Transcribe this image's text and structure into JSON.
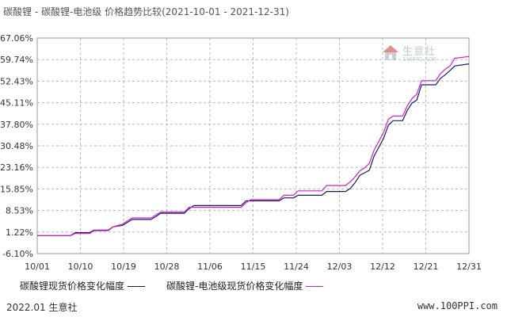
{
  "title": "碳酸锂 - 碳酸锂-电池级 价格趋势比较(2021-10-01 - 2021-12-31)",
  "logo": {
    "name": "生意社",
    "sub": "100PPI.COM"
  },
  "footer": {
    "left": "2022.01 生意社",
    "right": "www.100PPI.com"
  },
  "colors": {
    "grid": "#b8b8b8",
    "series1": "#1a1a5e",
    "series2": "#d21fd2"
  },
  "chart_data": {
    "type": "line",
    "title": "碳酸锂 - 碳酸锂-电池级 价格趋势比较(2021-10-01 - 2021-12-31)",
    "xlabel": "",
    "ylabel": "",
    "x_start": "2021-10-01",
    "x_end": "2021-12-31",
    "xticks": [
      "10/01",
      "10/10",
      "10/19",
      "10/28",
      "11/06",
      "11/15",
      "11/24",
      "12/03",
      "12/12",
      "12/21",
      "12/31"
    ],
    "yticks": [
      "67.06%",
      "59.74%",
      "52.43%",
      "45.11%",
      "37.80%",
      "30.48%",
      "23.16%",
      "15.85%",
      "8.53%",
      "1.22%",
      "-6.10%"
    ],
    "ylim": [
      -6.1,
      67.06
    ],
    "grid": true,
    "legend_position": "bottom",
    "series": [
      {
        "name": "碳酸锂现货价格变化幅度",
        "color": "#1a1a5e",
        "points": [
          [
            "2021-10-01",
            0.0
          ],
          [
            "2021-10-08",
            0.0
          ],
          [
            "2021-10-09",
            1.0
          ],
          [
            "2021-10-12",
            1.0
          ],
          [
            "2021-10-13",
            1.9
          ],
          [
            "2021-10-16",
            1.9
          ],
          [
            "2021-10-17",
            3.0
          ],
          [
            "2021-10-19",
            3.5
          ],
          [
            "2021-10-20",
            4.5
          ],
          [
            "2021-10-21",
            5.5
          ],
          [
            "2021-10-25",
            5.5
          ],
          [
            "2021-10-26",
            6.5
          ],
          [
            "2021-10-27",
            7.6
          ],
          [
            "2021-11-01",
            7.6
          ],
          [
            "2021-11-02",
            9.1
          ],
          [
            "2021-11-03",
            10.2
          ],
          [
            "2021-11-13",
            10.2
          ],
          [
            "2021-11-14",
            11.8
          ],
          [
            "2021-11-21",
            11.8
          ],
          [
            "2021-11-22",
            12.8
          ],
          [
            "2021-11-24",
            12.8
          ],
          [
            "2021-11-25",
            13.7
          ],
          [
            "2021-11-30",
            13.7
          ],
          [
            "2021-12-01",
            15.0
          ],
          [
            "2021-12-05",
            15.0
          ],
          [
            "2021-12-06",
            16.0
          ],
          [
            "2021-12-07",
            18.0
          ],
          [
            "2021-12-08",
            20.5
          ],
          [
            "2021-12-09",
            21.3
          ],
          [
            "2021-12-10",
            22.2
          ],
          [
            "2021-12-11",
            27.0
          ],
          [
            "2021-12-12",
            30.0
          ],
          [
            "2021-12-13",
            33.0
          ],
          [
            "2021-12-14",
            37.5
          ],
          [
            "2021-12-15",
            39.0
          ],
          [
            "2021-12-17",
            39.0
          ],
          [
            "2021-12-18",
            42.5
          ],
          [
            "2021-12-19",
            45.0
          ],
          [
            "2021-12-20",
            46.0
          ],
          [
            "2021-12-21",
            51.2
          ],
          [
            "2021-12-24",
            51.2
          ],
          [
            "2021-12-25",
            53.4
          ],
          [
            "2021-12-26",
            54.6
          ],
          [
            "2021-12-27",
            56.0
          ],
          [
            "2021-12-28",
            57.6
          ],
          [
            "2021-12-31",
            58.3
          ]
        ]
      },
      {
        "name": "碳酸锂-电池级现货价格变化幅度",
        "color": "#d21fd2",
        "points": [
          [
            "2021-10-01",
            0.0
          ],
          [
            "2021-10-08",
            0.0
          ],
          [
            "2021-10-09",
            0.7
          ],
          [
            "2021-10-12",
            0.7
          ],
          [
            "2021-10-13",
            1.7
          ],
          [
            "2021-10-16",
            1.7
          ],
          [
            "2021-10-17",
            3.0
          ],
          [
            "2021-10-19",
            3.9
          ],
          [
            "2021-10-20",
            5.0
          ],
          [
            "2021-10-21",
            6.0
          ],
          [
            "2021-10-25",
            6.0
          ],
          [
            "2021-10-26",
            7.0
          ],
          [
            "2021-10-27",
            8.0
          ],
          [
            "2021-11-01",
            8.0
          ],
          [
            "2021-11-02",
            9.6
          ],
          [
            "2021-11-13",
            9.6
          ],
          [
            "2021-11-14",
            11.2
          ],
          [
            "2021-11-15",
            12.2
          ],
          [
            "2021-11-21",
            12.2
          ],
          [
            "2021-11-22",
            13.7
          ],
          [
            "2021-11-24",
            13.7
          ],
          [
            "2021-11-25",
            15.2
          ],
          [
            "2021-11-30",
            15.2
          ],
          [
            "2021-12-01",
            17.0
          ],
          [
            "2021-12-05",
            17.0
          ],
          [
            "2021-12-06",
            18.3
          ],
          [
            "2021-12-07",
            20.0
          ],
          [
            "2021-12-08",
            22.0
          ],
          [
            "2021-12-09",
            23.0
          ],
          [
            "2021-12-10",
            24.5
          ],
          [
            "2021-12-11",
            29.0
          ],
          [
            "2021-12-12",
            32.0
          ],
          [
            "2021-12-13",
            35.0
          ],
          [
            "2021-12-14",
            39.5
          ],
          [
            "2021-12-15",
            40.6
          ],
          [
            "2021-12-17",
            40.6
          ],
          [
            "2021-12-18",
            44.0
          ],
          [
            "2021-12-19",
            46.5
          ],
          [
            "2021-12-20",
            48.0
          ],
          [
            "2021-12-21",
            52.6
          ],
          [
            "2021-12-24",
            52.6
          ],
          [
            "2021-12-25",
            55.0
          ],
          [
            "2021-12-26",
            56.5
          ],
          [
            "2021-12-27",
            57.5
          ],
          [
            "2021-12-28",
            60.2
          ],
          [
            "2021-12-31",
            60.8
          ]
        ]
      }
    ]
  }
}
